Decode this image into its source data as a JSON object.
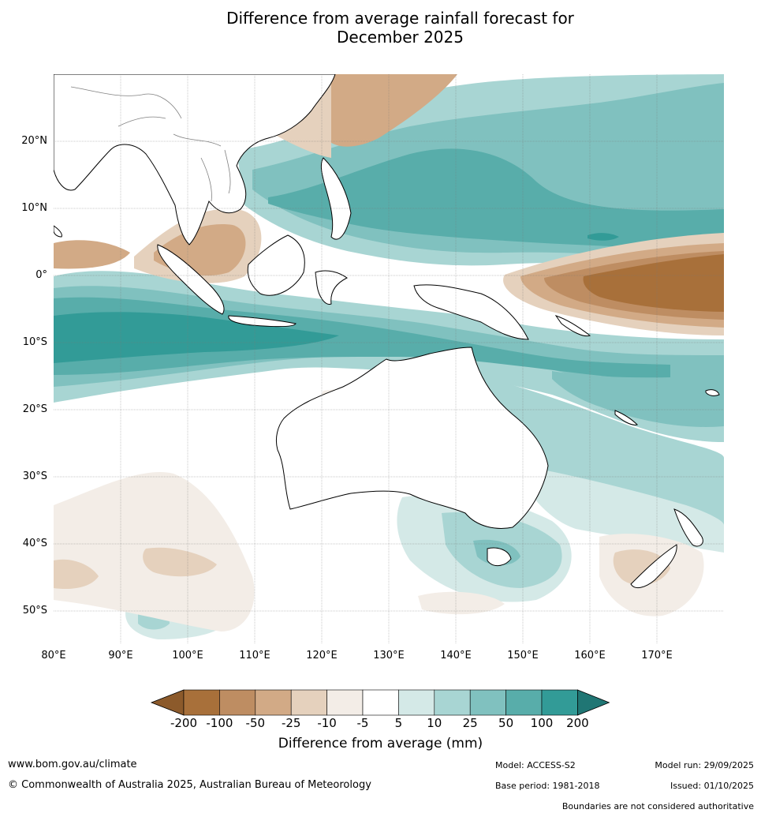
{
  "title": {
    "line1": "Difference from average rainfall forecast for",
    "line2": "December 2025"
  },
  "map": {
    "region": "Australia, Maritime Continent and Western Pacific",
    "lat_labels": [
      "20°N",
      "10°N",
      "0°",
      "10°S",
      "20°S",
      "30°S",
      "40°S",
      "50°S"
    ],
    "lon_labels": [
      "80°E",
      "90°E",
      "100°E",
      "110°E",
      "120°E",
      "130°E",
      "140°E",
      "150°E",
      "160°E",
      "170°E"
    ],
    "lat_range": [
      -55,
      30
    ],
    "lon_range": [
      80,
      180
    ],
    "colors": {
      "ocean_background": "#ffffff",
      "coastline": "#000000",
      "borders": "#808080",
      "grid": "#777777"
    }
  },
  "colorbar": {
    "ticks": [
      "-200",
      "-100",
      "-50",
      "-25",
      "-10",
      "-5",
      "5",
      "10",
      "25",
      "50",
      "100",
      "200"
    ],
    "colors": [
      "#8c5a2b",
      "#a8703a",
      "#be8d62",
      "#d2aa86",
      "#e5d1bd",
      "#f3ede7",
      "#ffffff",
      "#d4e9e7",
      "#a8d5d3",
      "#80c1bf",
      "#58adaa",
      "#329b97",
      "#207674"
    ],
    "label": "Difference from average (mm)"
  },
  "footer": {
    "website": "www.bom.gov.au/climate",
    "copyright": "© Commonwealth of Australia 2025, Australian Bureau of Meteorology",
    "model": "Model: ACCESS-S2",
    "base_period": "Base period: 1981-2018",
    "model_run": "Model run: 29/09/2025",
    "issued": "Issued: 01/10/2025",
    "disclaimer": "Boundaries are not considered authoritative"
  }
}
